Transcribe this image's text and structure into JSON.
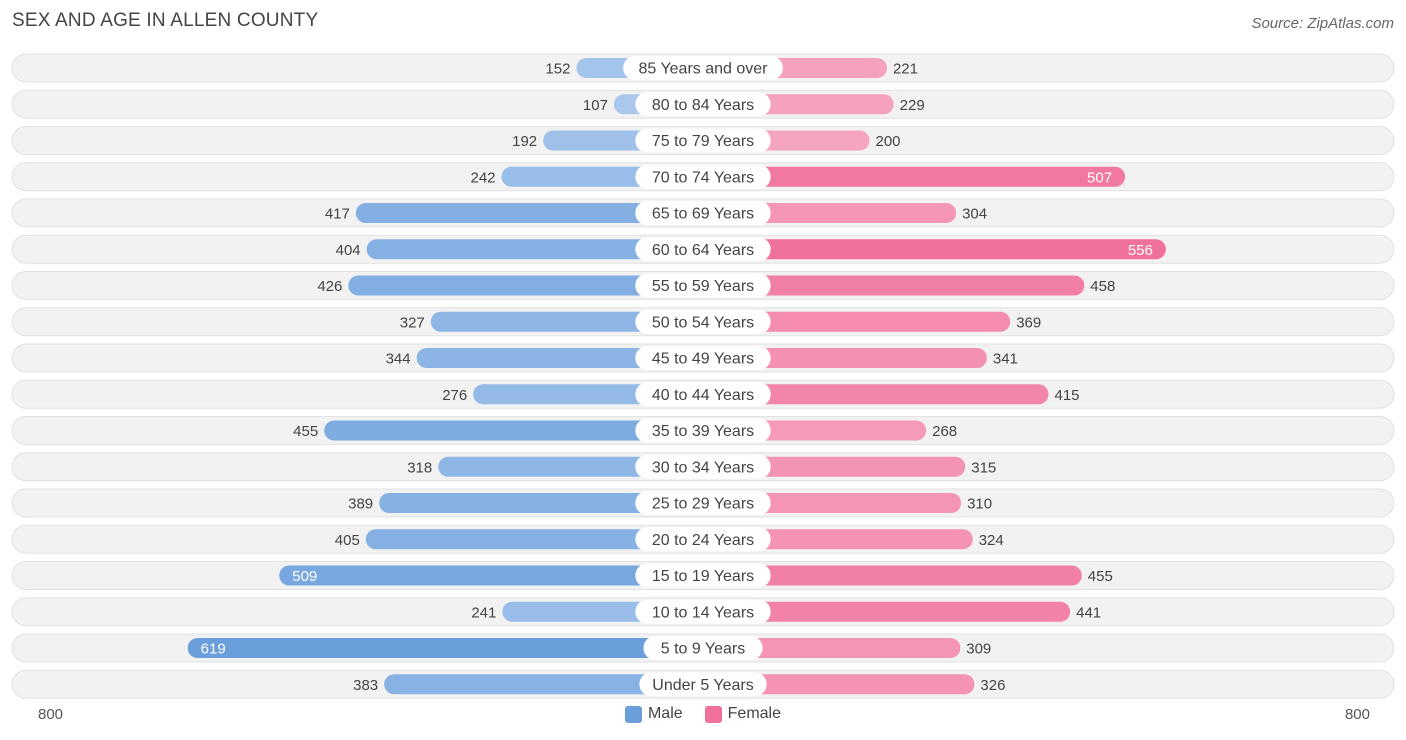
{
  "title": "SEX AND AGE IN ALLEN COUNTY",
  "source": "Source: ZipAtlas.com",
  "colors": {
    "male_dark": "#6a9fdc",
    "male_light": "#a9c8ec",
    "female_dark": "#f0719a",
    "female_light": "#f6a5bf",
    "row_bg": "#f2f2f2"
  },
  "legend": {
    "male": "Male",
    "female": "Female"
  },
  "axis": {
    "left": "800",
    "right": "800"
  },
  "chart_data": {
    "type": "bar",
    "orientation": "horizontal-diverging",
    "xlim": [
      -800,
      800
    ],
    "categories": [
      "85 Years and over",
      "80 to 84 Years",
      "75 to 79 Years",
      "70 to 74 Years",
      "65 to 69 Years",
      "60 to 64 Years",
      "55 to 59 Years",
      "50 to 54 Years",
      "45 to 49 Years",
      "40 to 44 Years",
      "35 to 39 Years",
      "30 to 34 Years",
      "25 to 29 Years",
      "20 to 24 Years",
      "15 to 19 Years",
      "10 to 14 Years",
      "5 to 9 Years",
      "Under 5 Years"
    ],
    "series": [
      {
        "name": "Male",
        "values": [
          152,
          107,
          192,
          242,
          417,
          404,
          426,
          327,
          344,
          276,
          455,
          318,
          389,
          405,
          509,
          241,
          619,
          383
        ]
      },
      {
        "name": "Female",
        "values": [
          221,
          229,
          200,
          507,
          304,
          556,
          458,
          369,
          341,
          415,
          268,
          315,
          310,
          324,
          455,
          441,
          309,
          326
        ]
      }
    ]
  }
}
